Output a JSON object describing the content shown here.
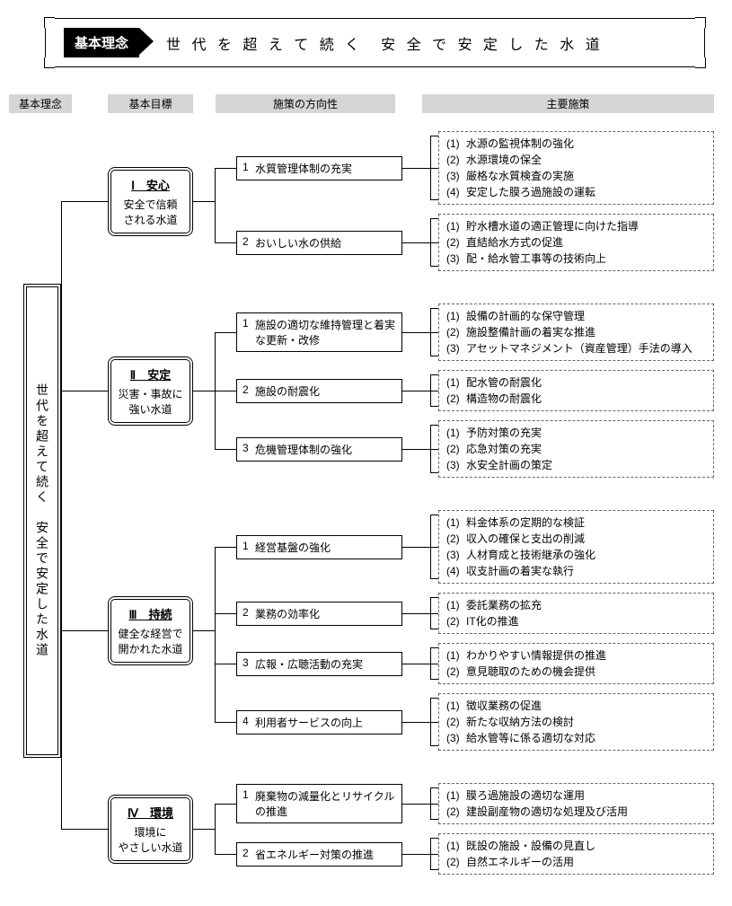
{
  "banner": {
    "label": "基本理念",
    "text": "世 代 を 超 え て 続 く　安 全 で 安 定 し た 水 道"
  },
  "headers": {
    "h1": "基本理念",
    "h2": "基本目標",
    "h3": "施策の方向性",
    "h4": "主要施策"
  },
  "vision": "世代を超えて続く　安全で安定した水道",
  "colors": {
    "header_bg": "#d6d6d6",
    "line": "#000000",
    "dash": "#666666",
    "bg": "#ffffff"
  },
  "goals": [
    {
      "id": "I",
      "title": "Ⅰ　安心",
      "sub": "安全で信頼\nされる水道",
      "directions": [
        {
          "num": "1",
          "label": "水質管理体制の充実",
          "measures": [
            "水源の監視体制の強化",
            "水源環境の保全",
            "厳格な水質検査の実施",
            "安定した膜ろ過施設の運転"
          ]
        },
        {
          "num": "2",
          "label": "おいしい水の供給",
          "measures": [
            "貯水槽水道の適正管理に向けた指導",
            "直結給水方式の促進",
            "配・給水管工事等の技術向上"
          ]
        }
      ]
    },
    {
      "id": "II",
      "title": "Ⅱ　安定",
      "sub": "災害・事故に\n強い水道",
      "directions": [
        {
          "num": "1",
          "label": "施設の適切な維持管理と着実な更新・改修",
          "measures": [
            "設備の計画的な保守管理",
            "施設整備計画の着実な推進",
            "アセットマネジメント（資産管理）手法の導入"
          ]
        },
        {
          "num": "2",
          "label": "施設の耐震化",
          "measures": [
            "配水管の耐震化",
            "構造物の耐震化"
          ]
        },
        {
          "num": "3",
          "label": "危機管理体制の強化",
          "measures": [
            "予防対策の充実",
            "応急対策の充実",
            "水安全計画の策定"
          ]
        }
      ]
    },
    {
      "id": "III",
      "title": "Ⅲ　持続",
      "sub": "健全な経営で\n開かれた水道",
      "directions": [
        {
          "num": "1",
          "label": "経営基盤の強化",
          "measures": [
            "料金体系の定期的な検証",
            "収入の確保と支出の削減",
            "人材育成と技術継承の強化",
            "収支計画の着実な執行"
          ]
        },
        {
          "num": "2",
          "label": "業務の効率化",
          "measures": [
            "委託業務の拡充",
            "IT化の推進"
          ]
        },
        {
          "num": "3",
          "label": "広報・広聴活動の充実",
          "measures": [
            "わかりやすい情報提供の推進",
            "意見聴取のための機会提供"
          ]
        },
        {
          "num": "4",
          "label": "利用者サービスの向上",
          "measures": [
            "徴収業務の促進",
            "新たな収納方法の検討",
            "給水管等に係る適切な対応"
          ]
        }
      ]
    },
    {
      "id": "IV",
      "title": "Ⅳ　環境",
      "sub": "環境に\nやさしい水道",
      "directions": [
        {
          "num": "1",
          "label": "廃棄物の減量化とリサイクルの推進",
          "measures": [
            "膜ろ過施設の適切な運用",
            "建設副産物の適切な処理及び活用"
          ]
        },
        {
          "num": "2",
          "label": "省エネルギー対策の推進",
          "measures": [
            "既設の施設・設備の見直し",
            "自然エネルギーの活用"
          ]
        }
      ]
    }
  ]
}
